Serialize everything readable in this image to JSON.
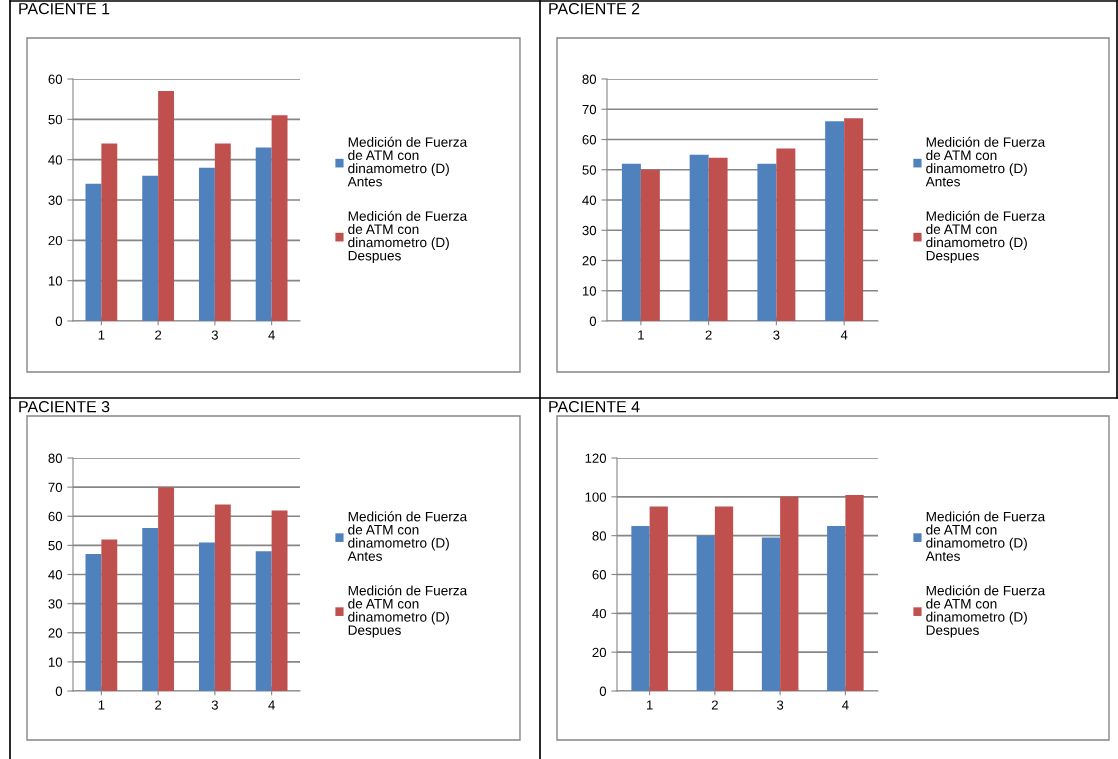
{
  "chart_data": [
    {
      "type": "bar",
      "title": "PACIENTE 1",
      "categories": [
        "1",
        "2",
        "3",
        "4"
      ],
      "ylim": [
        0,
        60
      ],
      "yticks": [
        0,
        10,
        20,
        30,
        40,
        50,
        60
      ],
      "grid": "y",
      "legend": "right",
      "series": [
        {
          "name": "Medición de Fuerza\nde ATM con\ndinamometro (D)\nAntes",
          "color": "#4f81bd",
          "values": [
            34,
            36,
            38,
            43
          ]
        },
        {
          "name": "Medición de Fuerza\nde ATM con\ndinamometro (D)\nDespues",
          "color": "#c0504d",
          "values": [
            44,
            57,
            44,
            51
          ]
        }
      ]
    },
    {
      "type": "bar",
      "title": "PACIENTE 2",
      "categories": [
        "1",
        "2",
        "3",
        "4"
      ],
      "ylim": [
        0,
        80
      ],
      "yticks": [
        0,
        10,
        20,
        30,
        40,
        50,
        60,
        70,
        80
      ],
      "grid": "y",
      "legend": "right",
      "series": [
        {
          "name": "Medición de Fuerza\nde ATM con\ndinamometro (D)\nAntes",
          "color": "#4f81bd",
          "values": [
            52,
            55,
            52,
            66
          ]
        },
        {
          "name": "Medición de Fuerza\nde ATM con\ndinamometro (D)\nDespues",
          "color": "#c0504d",
          "values": [
            50,
            54,
            57,
            67
          ]
        }
      ]
    },
    {
      "type": "bar",
      "title": "PACIENTE 3",
      "categories": [
        "1",
        "2",
        "3",
        "4"
      ],
      "ylim": [
        0,
        80
      ],
      "yticks": [
        0,
        10,
        20,
        30,
        40,
        50,
        60,
        70,
        80
      ],
      "grid": "y",
      "legend": "right",
      "series": [
        {
          "name": "Medición de Fuerza\nde ATM con\ndinamometro (D)\nAntes",
          "color": "#4f81bd",
          "values": [
            47,
            56,
            51,
            48
          ]
        },
        {
          "name": "Medición de Fuerza\nde ATM con\ndinamometro (D)\nDespues",
          "color": "#c0504d",
          "values": [
            52,
            70,
            64,
            62
          ]
        }
      ]
    },
    {
      "type": "bar",
      "title": "PACIENTE 4",
      "categories": [
        "1",
        "2",
        "3",
        "4"
      ],
      "ylim": [
        0,
        120
      ],
      "yticks": [
        0,
        20,
        40,
        60,
        80,
        100,
        120
      ],
      "grid": "y",
      "legend": "right",
      "series": [
        {
          "name": "Medición de Fuerza\nde ATM con\ndinamometro (D)\nAntes",
          "color": "#4f81bd",
          "values": [
            85,
            80,
            79,
            85
          ]
        },
        {
          "name": "Medición de Fuerza\nde ATM con\ndinamometro (D)\nDespues",
          "color": "#c0504d",
          "values": [
            95,
            95,
            100,
            101
          ]
        }
      ]
    }
  ]
}
